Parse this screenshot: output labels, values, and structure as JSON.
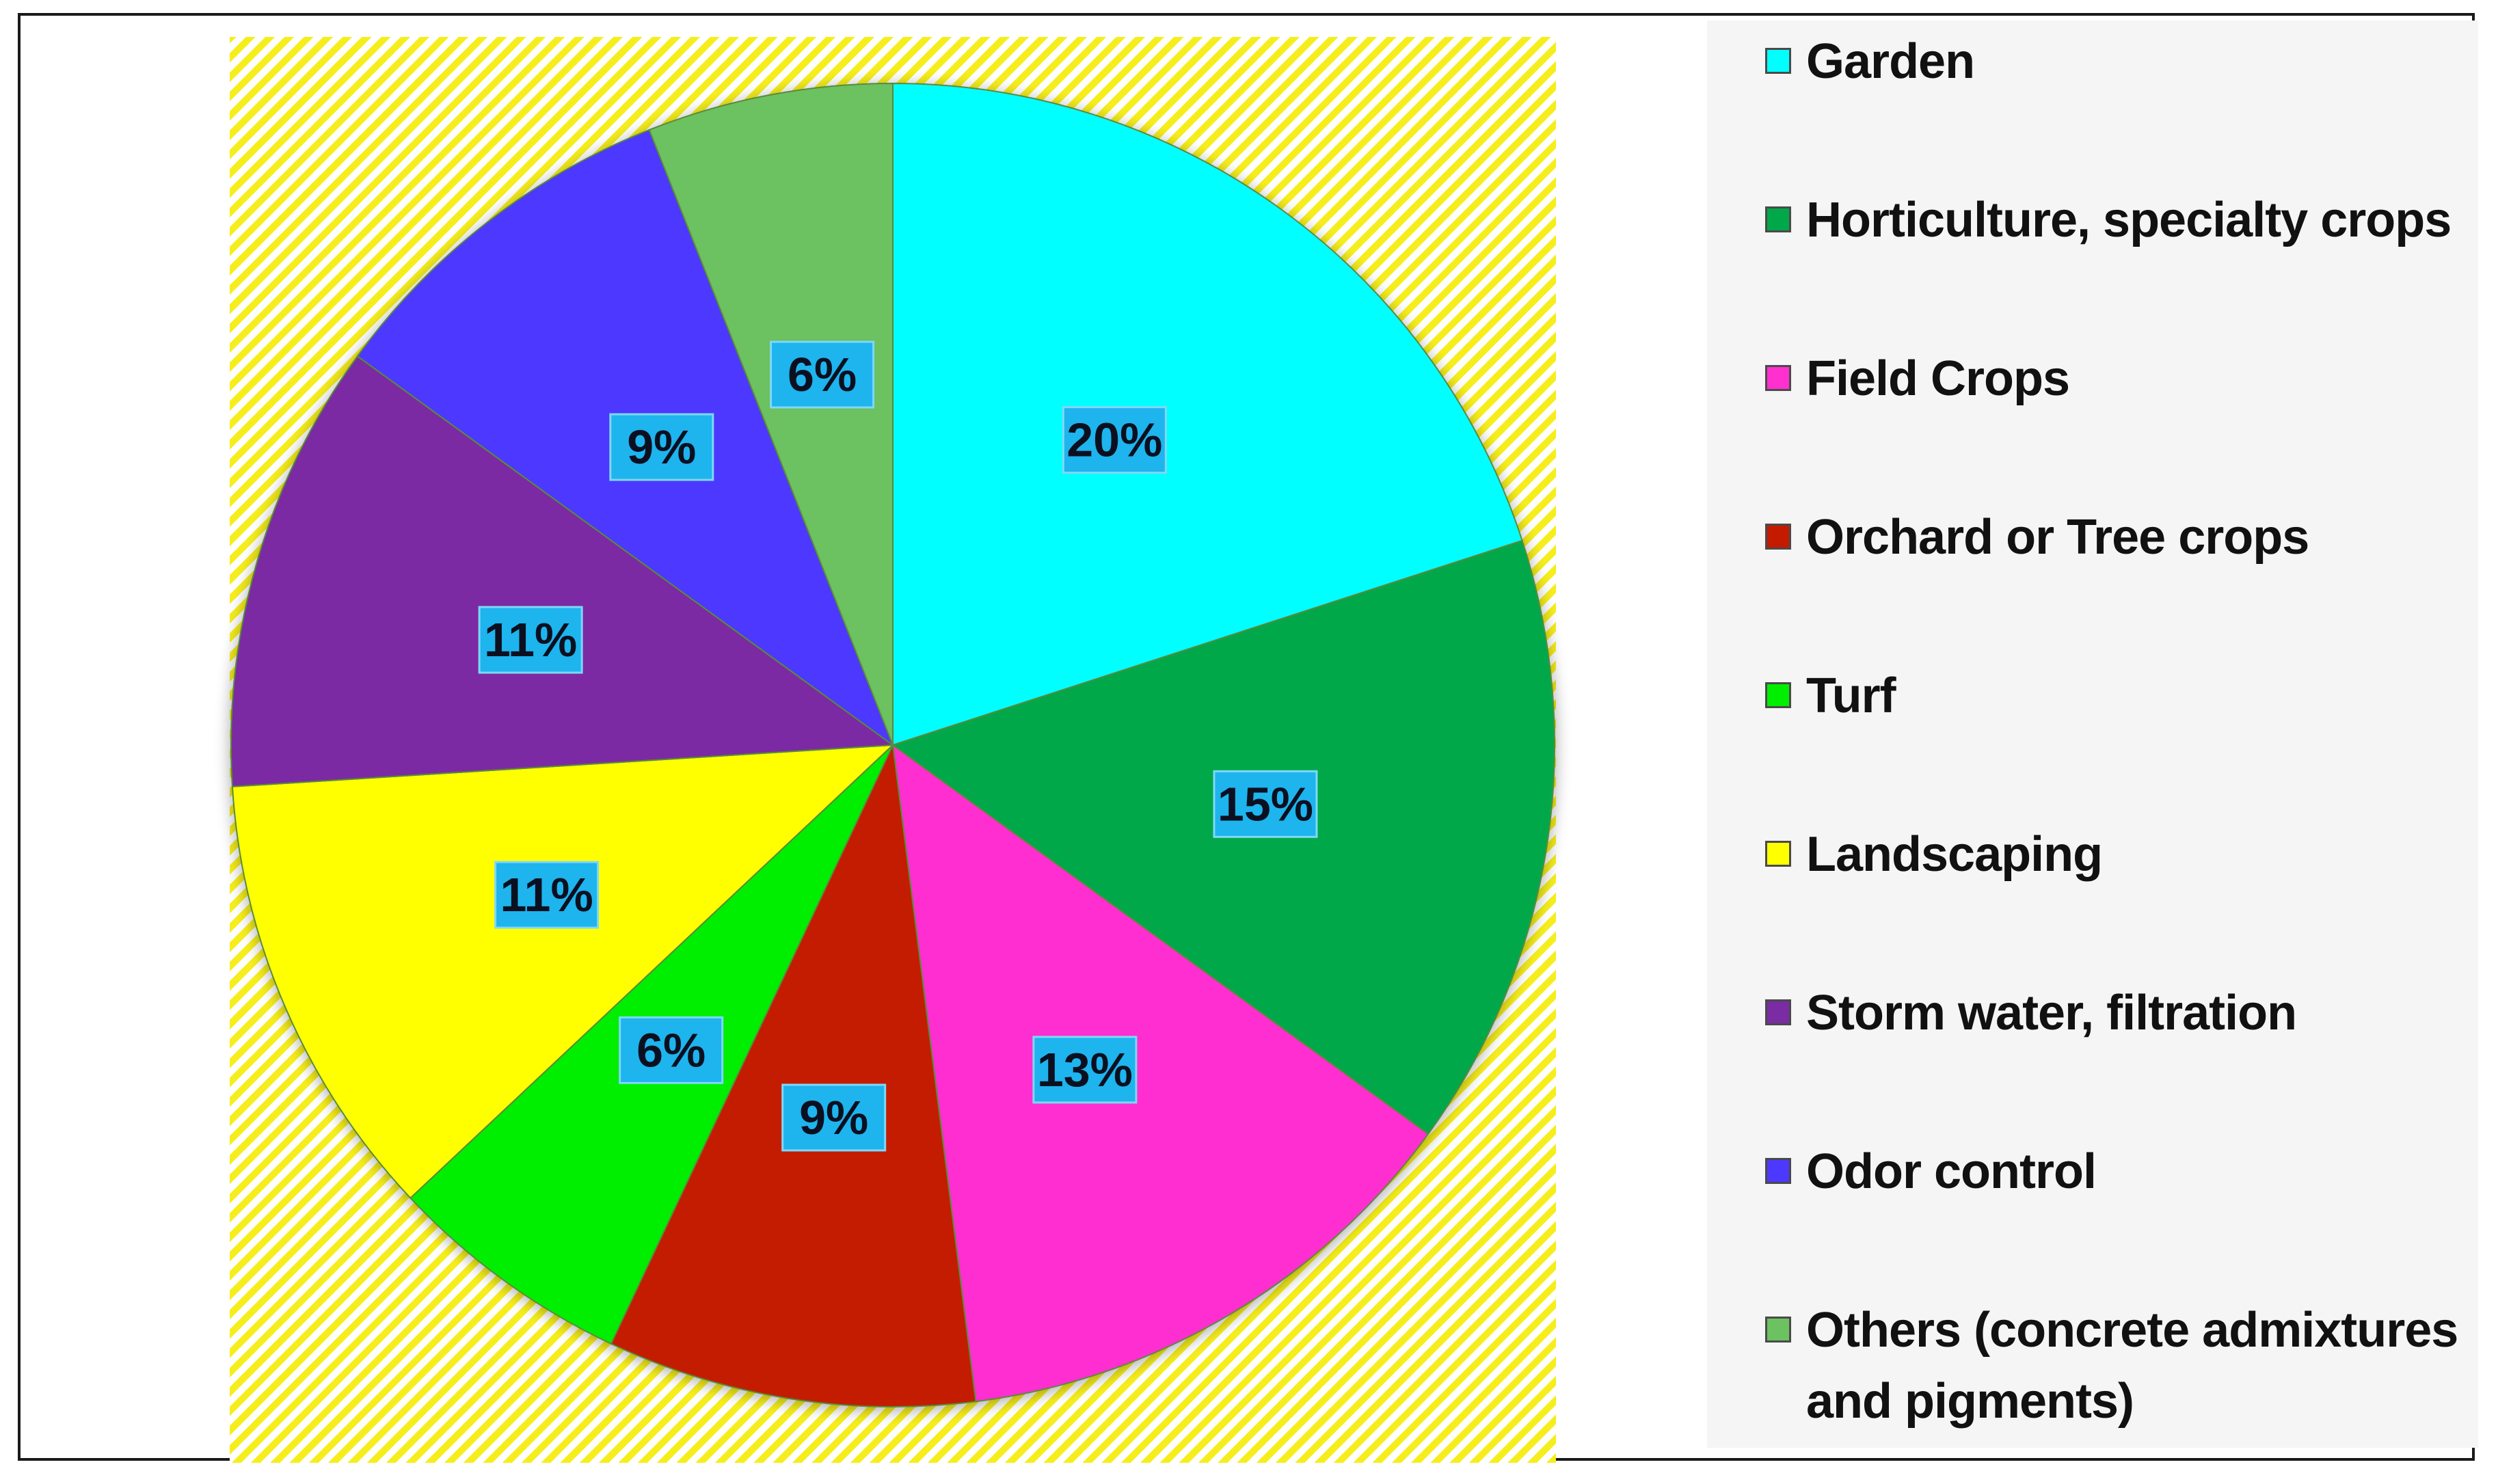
{
  "chart_data": {
    "type": "pie",
    "start_angle_deg": 0,
    "direction": "clockwise",
    "legend_position": "right",
    "slices": [
      {
        "name": "Garden",
        "value": 20,
        "label": "20%",
        "color": "#00ffff"
      },
      {
        "name": "Horticulture, specialty crops",
        "value": 15,
        "label": "15%",
        "color": "#00a84a"
      },
      {
        "name": "Field Crops",
        "value": 13,
        "label": "13%",
        "color": "#ff2fd0"
      },
      {
        "name": "Orchard or Tree crops",
        "value": 9,
        "label": "9%",
        "color": "#c41a00"
      },
      {
        "name": "Turf",
        "value": 6,
        "label": "6%",
        "color": "#00ee00"
      },
      {
        "name": "Landscaping",
        "value": 11,
        "label": "11%",
        "color": "#ffff00"
      },
      {
        "name": "Storm water, filtration",
        "value": 11,
        "label": "11%",
        "color": "#7b2ba3"
      },
      {
        "name": "Odor control",
        "value": 9,
        "label": "9%",
        "color": "#4d38ff"
      },
      {
        "name": "Others (concrete admixtures and pigments)",
        "value": 6,
        "label": "6%",
        "color": "#6cc160"
      }
    ],
    "data_label_box_color": "#1eb4ee",
    "plot_background": "#f6ee1c"
  }
}
